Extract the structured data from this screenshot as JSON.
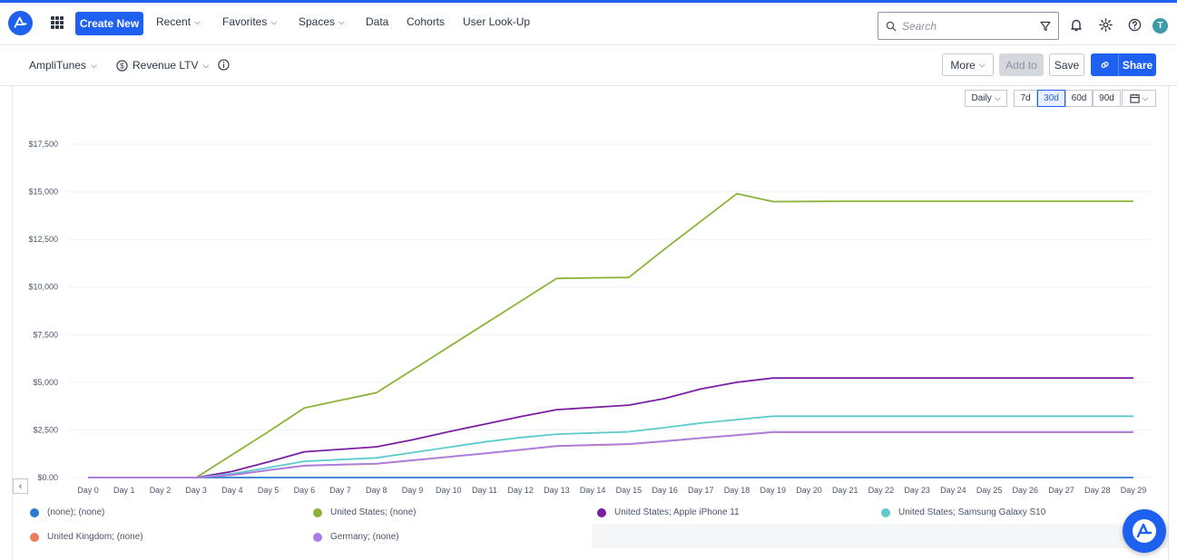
{
  "nav": {
    "create_new": "Create New",
    "recent": "Recent",
    "favorites": "Favorites",
    "spaces": "Spaces",
    "data": "Data",
    "cohorts": "Cohorts",
    "user_lookup": "User Look-Up",
    "search_placeholder": "Search",
    "avatar_initial": "T"
  },
  "subbar": {
    "project": "AmpliTunes",
    "chart_type": "Revenue LTV",
    "more": "More",
    "add_to": "Add to",
    "save": "Save",
    "share": "Share"
  },
  "controls": {
    "interval": "Daily",
    "ranges": [
      "7d",
      "30d",
      "60d",
      "90d"
    ],
    "active_range": "30d"
  },
  "chart_data": {
    "type": "line",
    "categories": [
      "Day 0",
      "Day 1",
      "Day 2",
      "Day 3",
      "Day 4",
      "Day 5",
      "Day 6",
      "Day 7",
      "Day 8",
      "Day 9",
      "Day 10",
      "Day 11",
      "Day 12",
      "Day 13",
      "Day 14",
      "Day 15",
      "Day 16",
      "Day 17",
      "Day 18",
      "Day 19",
      "Day 20",
      "Day 21",
      "Day 22",
      "Day 23",
      "Day 24",
      "Day 25",
      "Day 26",
      "Day 27",
      "Day 28",
      "Day 29"
    ],
    "ylim": [
      0,
      17500
    ],
    "yticks": [
      0,
      2500,
      5000,
      7500,
      10000,
      12500,
      15000,
      17500
    ],
    "ytick_labels": [
      "$0.00",
      "$2,500",
      "$5,000",
      "$7,500",
      "$10,000",
      "$12,500",
      "$15,000",
      "$17,500"
    ],
    "grid": true,
    "legend_position": "bottom",
    "series": [
      {
        "name": "(none); (none)",
        "color": "#2d78d2",
        "values": [
          0,
          0,
          0,
          0,
          0,
          0,
          0,
          0,
          0,
          0,
          0,
          0,
          0,
          0,
          0,
          0,
          0,
          0,
          0,
          0,
          0,
          0,
          0,
          0,
          0,
          0,
          0,
          0,
          0,
          0
        ]
      },
      {
        "name": "United States; (none)",
        "color": "#8ab337",
        "values": [
          0,
          0,
          0,
          0,
          1200,
          2400,
          3650,
          4050,
          4450,
          5650,
          6850,
          8050,
          9250,
          10450,
          10480,
          10500,
          12000,
          13450,
          14900,
          14480,
          14490,
          14500,
          14500,
          14500,
          14500,
          14500,
          14500,
          14500,
          14500,
          14500
        ]
      },
      {
        "name": "United States; Apple iPhone 11",
        "color": "#7b1fa2",
        "values": [
          0,
          0,
          0,
          0,
          320,
          820,
          1350,
          1480,
          1610,
          1980,
          2400,
          2800,
          3200,
          3560,
          3680,
          3800,
          4150,
          4650,
          5000,
          5220,
          5220,
          5220,
          5220,
          5220,
          5220,
          5220,
          5220,
          5220,
          5220,
          5220
        ]
      },
      {
        "name": "United States; Samsung Galaxy S10",
        "color": "#5ecbcb",
        "values": [
          0,
          0,
          0,
          0,
          200,
          520,
          850,
          940,
          1030,
          1310,
          1590,
          1870,
          2100,
          2280,
          2340,
          2400,
          2620,
          2860,
          3040,
          3220,
          3220,
          3220,
          3220,
          3220,
          3220,
          3220,
          3220,
          3220,
          3220,
          3220
        ]
      },
      {
        "name": "United Kingdom; (none)",
        "color": "#ef7a5c",
        "values": [
          0,
          0,
          0,
          0,
          130,
          380,
          620,
          670,
          720,
          900,
          1080,
          1260,
          1450,
          1650,
          1700,
          1750,
          1900,
          2070,
          2220,
          2380,
          2380,
          2380,
          2380,
          2380,
          2380,
          2380,
          2380,
          2380,
          2380,
          2380
        ]
      },
      {
        "name": "Germany; (none)",
        "color": "#a77ee6",
        "values": [
          0,
          0,
          0,
          0,
          140,
          390,
          630,
          680,
          730,
          910,
          1090,
          1270,
          1460,
          1660,
          1710,
          1760,
          1910,
          2080,
          2230,
          2390,
          2390,
          2390,
          2390,
          2390,
          2390,
          2390,
          2390,
          2390,
          2390,
          2390
        ]
      }
    ]
  }
}
